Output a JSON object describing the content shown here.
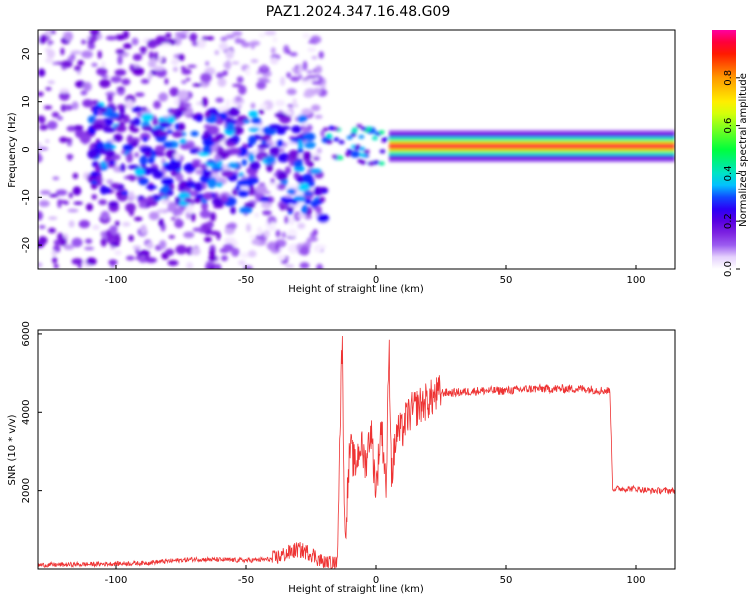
{
  "title": "PAZ1.2024.347.16.48.G09",
  "colors": {
    "snr_line": "#ee3333",
    "colormap": [
      "#ffffff",
      "#f4e8ff",
      "#9c5cf0",
      "#6a00d8",
      "#1a00ff",
      "#00d8ff",
      "#00ff3c",
      "#ffff00",
      "#ff9a00",
      "#ff0000",
      "#ff00a0"
    ]
  },
  "chart_data": [
    {
      "type": "heatmap",
      "xlabel": "Height of straight line (km)",
      "ylabel": "Frequency (Hz)",
      "xlim": [
        -130,
        115
      ],
      "ylim": [
        -25,
        25
      ],
      "xticks": [
        -100,
        -50,
        0,
        50,
        100
      ],
      "yticks": [
        20,
        10,
        0,
        -10,
        -20
      ],
      "colorbar": {
        "label": "Normalized spectral amplitude",
        "range": [
          0,
          1
        ],
        "ticks": [
          "0.0",
          "0.2",
          "0.4",
          "0.6",
          "0.8"
        ]
      },
      "features": [
        {
          "region_x": [
            -130,
            -20
          ],
          "freq_range": [
            -25,
            25
          ],
          "level": 0.08
        },
        {
          "region_x": [
            -110,
            -20
          ],
          "freq_range": [
            -12,
            8
          ],
          "level": 0.2
        },
        {
          "region_x": [
            -20,
            5
          ],
          "freq_range": [
            -3,
            5
          ],
          "level": 0.3
        },
        {
          "region_x": [
            5,
            115
          ],
          "freq_center": 0.7,
          "level": 0.95
        }
      ]
    },
    {
      "type": "line",
      "xlabel": "Height of straight line (km)",
      "ylabel": "SNR (10 * v/v)",
      "xlim": [
        -130,
        115
      ],
      "ylim": [
        0,
        6100
      ],
      "xticks": [
        -100,
        -50,
        0,
        50,
        100
      ],
      "yticks": [
        2000,
        4000,
        6000
      ],
      "series": [
        {
          "x": [
            -130,
            -110,
            -90,
            -70,
            -50,
            -40,
            -30,
            -25,
            -20,
            -15,
            -13,
            -12,
            -10,
            -8,
            -6,
            -4,
            -2,
            0,
            2,
            4,
            5,
            6,
            8,
            10,
            12,
            15,
            20,
            25,
            30,
            40,
            50,
            60,
            70,
            80,
            88,
            90,
            91,
            95,
            100,
            105,
            110,
            115
          ],
          "y": [
            100,
            120,
            150,
            250,
            220,
            250,
            500,
            400,
            150,
            120,
            6000,
            700,
            3100,
            2600,
            3200,
            2700,
            3600,
            2000,
            3700,
            2100,
            5800,
            2400,
            3500,
            3500,
            3900,
            4100,
            4300,
            4500,
            4500,
            4550,
            4550,
            4600,
            4600,
            4600,
            4550,
            4550,
            2050,
            2050,
            2050,
            2000,
            2000,
            2000
          ]
        }
      ]
    }
  ]
}
